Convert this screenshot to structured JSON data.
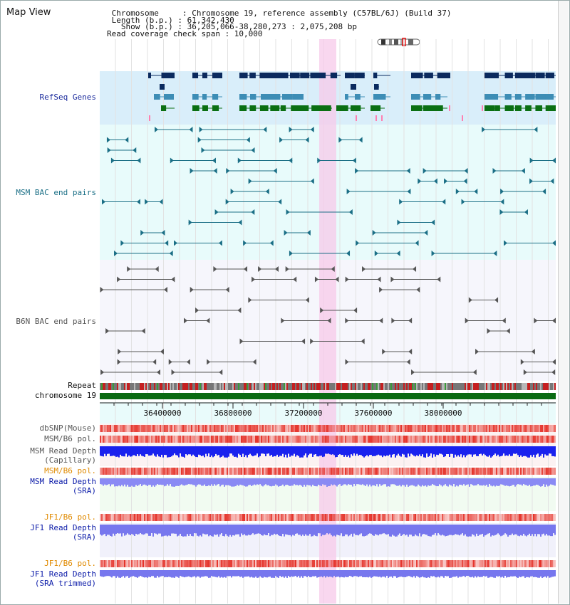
{
  "title": "Map View",
  "info": {
    "line1": " Chromosome     : Chromosome 19, reference assembly (C57BL/6J) (Build 37)",
    "line2": " Length (b.p.) : 61,342,430",
    "line3": "   Show (b.p.) : 36,205,066-38,280,273 : 2,075,208 bp",
    "line4": "Read coverage check span : 10,000"
  },
  "tracks": {
    "refseq": "RefSeq Genes",
    "msm_bac": "MSM BAC end pairs",
    "b6n_bac": "B6N BAC end pairs",
    "repeat": "Repeat",
    "chrom": "chromosome 19",
    "dbsnp": "dbSNP(Mouse)",
    "msm_b6_pol1": "MSM/B6 pol.",
    "msm_depth_cap_1": "MSM Read Depth",
    "msm_depth_cap_2": "(Capillary)",
    "msm_b6_pol2": "MSM/B6 pol.",
    "msm_depth_sra_1": "MSM Read Depth",
    "msm_depth_sra_2": "(SRA)",
    "jf1_b6_pol1": "JF1/B6 pol.",
    "jf1_depth_sra_1": "JF1 Read Depth",
    "jf1_depth_sra_2": "(SRA)",
    "jf1_b6_pol2": "JF1/B6 pol.",
    "jf1_depth_trim_1": "JF1 Read Depth",
    "jf1_depth_trim_2": "(SRA trimmed)"
  },
  "axis": {
    "ticks": [
      "36400000",
      "36800000",
      "37200000",
      "37600000",
      "38000000"
    ]
  },
  "colors": {
    "refseq_dark": "#0b2a5e",
    "refseq_mid": "#3d8db5",
    "refseq_green": "#0a6f12",
    "msm_bac": "#1b6f86",
    "b6n_bac": "#555555",
    "orange_label": "#e08a00",
    "blue_label": "#0a1aa8",
    "highlight": "#f7c9ea",
    "chrom_bar": "#0a6a12",
    "depth_blue": "#1a22ee",
    "depth_light": "#7777ee",
    "pol_red": "#e5332a"
  }
}
